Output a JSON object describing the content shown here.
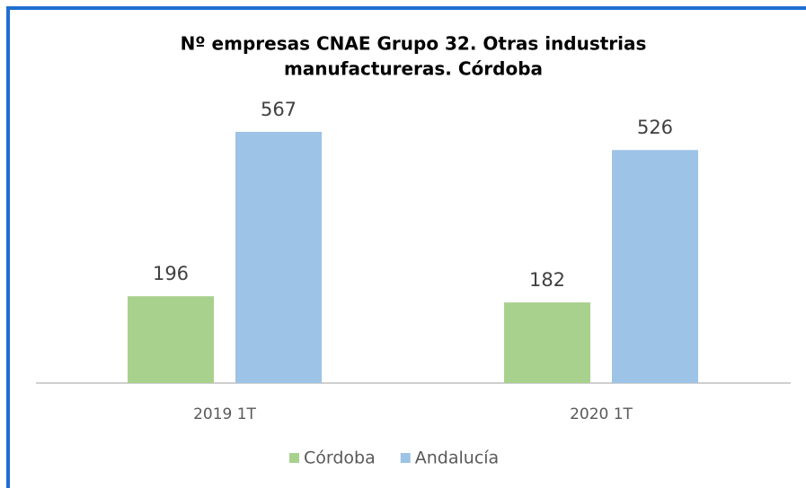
{
  "chart_data": {
    "type": "bar",
    "title": [
      "Nº empresas CNAE Grupo 32. Otras industrias",
      "manufactureras. Córdoba"
    ],
    "categories": [
      "2019 1T",
      "2020 1T"
    ],
    "series": [
      {
        "name": "Córdoba",
        "color": "#a9d18e",
        "values": [
          196,
          182
        ]
      },
      {
        "name": "Andalucía",
        "color": "#9dc3e6",
        "values": [
          567,
          526
        ]
      }
    ],
    "legend": "bottom"
  }
}
